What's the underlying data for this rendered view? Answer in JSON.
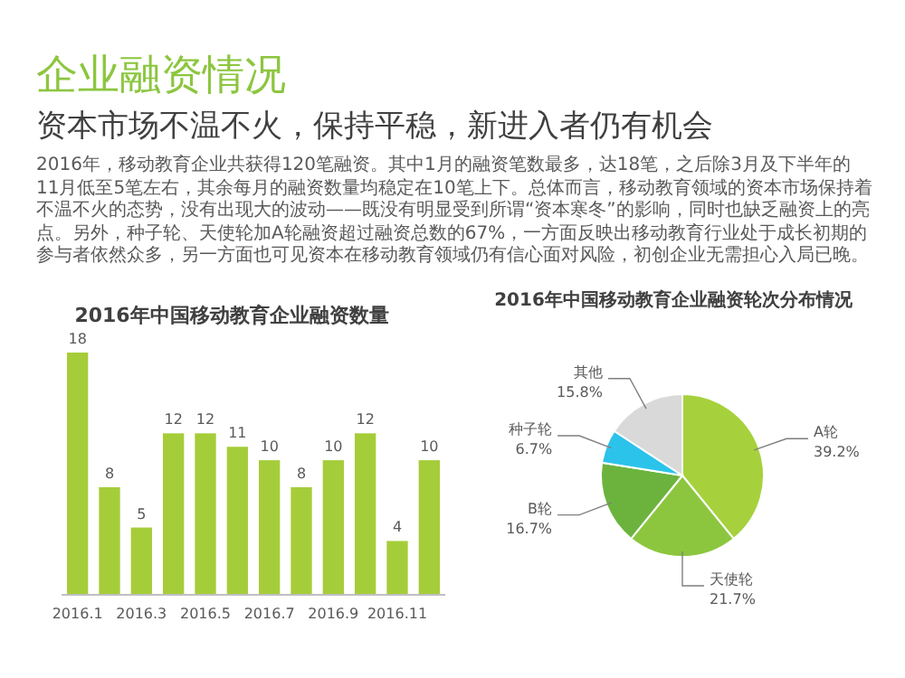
{
  "chart_data": [
    {
      "type": "other",
      "title": "企业融资情况",
      "subtitle": "资本市场不温不火，保持平稳，新进入者仍有机会",
      "annotations": [
        "2016年，移动教育企业共获得120笔融资。其中1月的融资笔数最多，达18笔，之后除3月及下半年的11月低至5笔左右，其余每月的融资数量均稳定在10笔上下。总体而言，移动教育领域的资本市场保持着不温不火的态势，没有出现大的波动——既没有明显受到所谓“资本寒冬”的影响，同时也缺乏融资上的亮点。另外，种子轮、天使轮加A轮融资超过融资总数的67%，一方面反映出移动教育行业处于成长初期的参与者依然众多，另一方面也可见资本在移动教育领域仍有信心面对风险，初创企业无需担心入局已晚。"
      ]
    },
    {
      "type": "bar",
      "title": "2016年中国移动教育企业融资数量",
      "categories": [
        "2016.1",
        null,
        "2016.3",
        null,
        "2016.5",
        null,
        "2016.7",
        null,
        "2016.9",
        null,
        "2016.11",
        null
      ],
      "values": [
        18,
        8,
        5,
        12,
        12,
        11,
        10,
        8,
        10,
        12,
        4,
        10
      ],
      "color": "#a5cd39",
      "data_labels": true
    },
    {
      "type": "pie",
      "title": "2016年中国移动教育企业融资轮次分布情况",
      "categories": [
        "A轮",
        "天使轮",
        "B轮",
        "种子轮",
        "其他"
      ],
      "values": [
        39.2,
        21.7,
        16.7,
        6.7,
        15.8
      ],
      "value_labels": [
        "39.2%",
        "21.7%",
        "16.7%",
        "6.7%",
        "15.8%"
      ],
      "colors": [
        "#a6d13c",
        "#8cc63f",
        "#6cb33e",
        "#2cc3ea",
        "#d9d9d9"
      ]
    }
  ]
}
